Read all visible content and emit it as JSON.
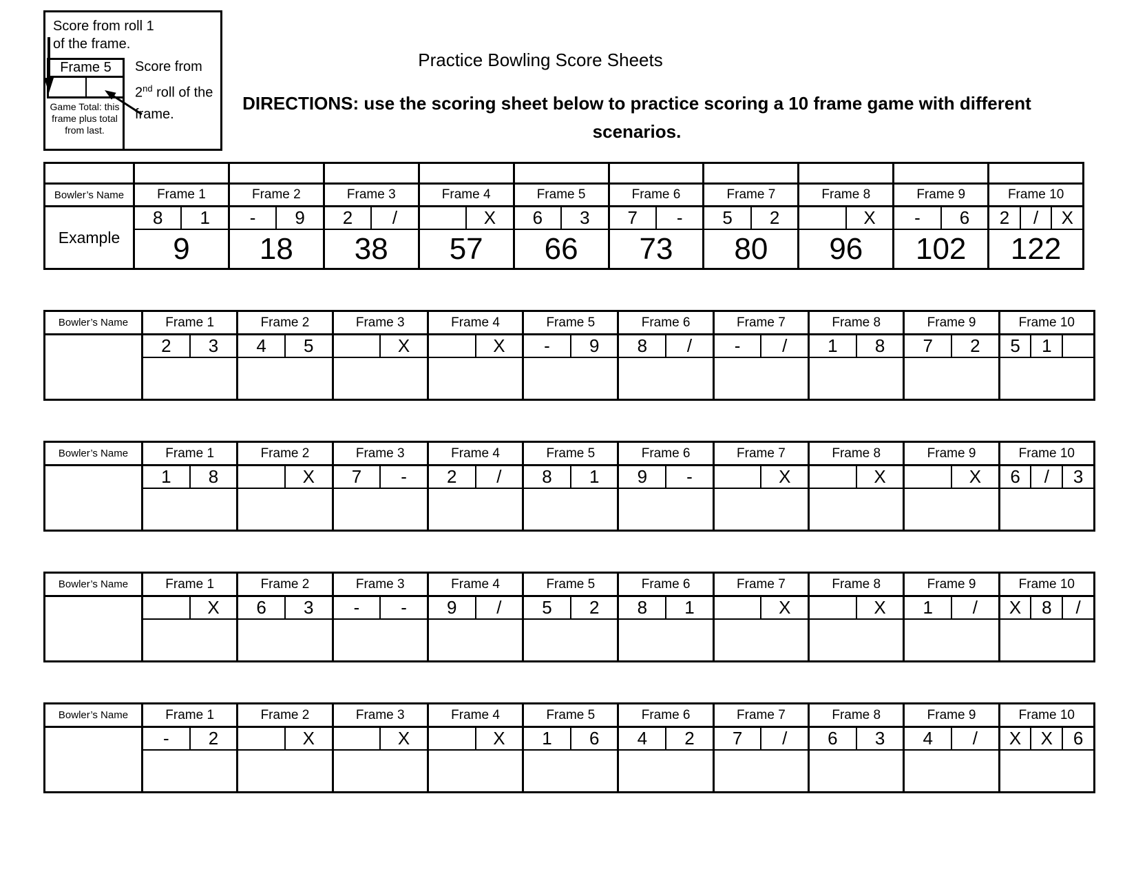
{
  "legend": {
    "roll1_line1": "Score from roll 1",
    "roll1_line2": "of the frame.",
    "mini_frame_title": "Frame 5",
    "game_total": "Game Total: this frame plus total from last.",
    "roll2_line1": "Score from",
    "roll2_num": "2",
    "roll2_sup": "nd",
    "roll2_rest": " roll of the",
    "roll2_line3": "frame."
  },
  "header": {
    "title": "Practice Bowling Score Sheets",
    "directions": "DIRECTIONS: use the scoring sheet below to practice scoring a 10 frame game with different scenarios."
  },
  "frame_headers": [
    "Frame 1",
    "Frame 2",
    "Frame 3",
    "Frame 4",
    "Frame 5",
    "Frame 6",
    "Frame 7",
    "Frame 8",
    "Frame 9",
    "Frame 10"
  ],
  "sheets": [
    {
      "name_label": "Bowler’s Name",
      "name_value": "Example",
      "has_spacer_row": true,
      "rolls": [
        [
          "8",
          "1"
        ],
        [
          "-",
          "9"
        ],
        [
          "2",
          "/"
        ],
        [
          "",
          "X"
        ],
        [
          "6",
          "3"
        ],
        [
          "7",
          "-"
        ],
        [
          "5",
          "2"
        ],
        [
          "",
          "X"
        ],
        [
          "-",
          "6"
        ],
        [
          "2",
          "/",
          "X"
        ]
      ],
      "totals": [
        "9",
        "18",
        "38",
        "57",
        "66",
        "73",
        "80",
        "96",
        "102",
        "122"
      ]
    },
    {
      "name_label": "Bowler’s Name",
      "name_value": "",
      "has_spacer_row": false,
      "rolls": [
        [
          "2",
          "3"
        ],
        [
          "4",
          "5"
        ],
        [
          "",
          "X"
        ],
        [
          "",
          "X"
        ],
        [
          "-",
          "9"
        ],
        [
          "8",
          "/"
        ],
        [
          "-",
          "/"
        ],
        [
          "1",
          "8"
        ],
        [
          "7",
          "2"
        ],
        [
          "5",
          "1",
          ""
        ]
      ],
      "totals": [
        "",
        "",
        "",
        "",
        "",
        "",
        "",
        "",
        "",
        ""
      ]
    },
    {
      "name_label": "Bowler’s Name",
      "name_value": "",
      "has_spacer_row": false,
      "rolls": [
        [
          "1",
          "8"
        ],
        [
          "",
          "X"
        ],
        [
          "7",
          "-"
        ],
        [
          "2",
          "/"
        ],
        [
          "8",
          "1"
        ],
        [
          "9",
          "-"
        ],
        [
          "",
          "X"
        ],
        [
          "",
          "X"
        ],
        [
          "",
          "X"
        ],
        [
          "6",
          "/",
          "3"
        ]
      ],
      "totals": [
        "",
        "",
        "",
        "",
        "",
        "",
        "",
        "",
        "",
        ""
      ]
    },
    {
      "name_label": "Bowler’s Name",
      "name_value": "",
      "has_spacer_row": false,
      "rolls": [
        [
          "",
          "X"
        ],
        [
          "6",
          "3"
        ],
        [
          "-",
          "-"
        ],
        [
          "9",
          "/"
        ],
        [
          "5",
          "2"
        ],
        [
          "8",
          "1"
        ],
        [
          "",
          "X"
        ],
        [
          "",
          "X"
        ],
        [
          "1",
          "/"
        ],
        [
          "X",
          "8",
          "/"
        ]
      ],
      "totals": [
        "",
        "",
        "",
        "",
        "",
        "",
        "",
        "",
        "",
        ""
      ]
    },
    {
      "name_label": "Bowler’s Name",
      "name_value": "",
      "has_spacer_row": false,
      "rolls": [
        [
          "-",
          "2"
        ],
        [
          "",
          "X"
        ],
        [
          "",
          "X"
        ],
        [
          "",
          "X"
        ],
        [
          "1",
          "6"
        ],
        [
          "4",
          "2"
        ],
        [
          "7",
          "/"
        ],
        [
          "6",
          "3"
        ],
        [
          "4",
          "/"
        ],
        [
          "X",
          "X",
          "6"
        ]
      ],
      "totals": [
        "",
        "",
        "",
        "",
        "",
        "",
        "",
        "",
        "",
        ""
      ]
    }
  ]
}
